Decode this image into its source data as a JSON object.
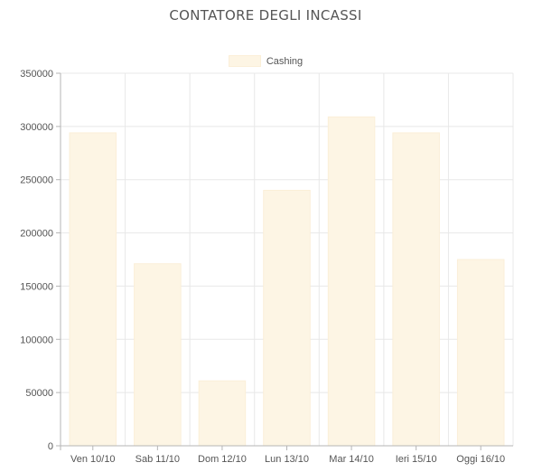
{
  "page": {
    "title": "CONTATORE DEGLI INCASSI"
  },
  "chart_data": {
    "type": "bar",
    "title": "CONTATORE DEGLI INCASSI",
    "categories": [
      "Ven 10/10",
      "Sab 11/10",
      "Dom 12/10",
      "Lun 13/10",
      "Mar 14/10",
      "Ieri 15/10",
      "Oggi 16/10"
    ],
    "series": [
      {
        "name": "Cashing",
        "values": [
          294000,
          171000,
          61000,
          240000,
          309000,
          294000,
          175000
        ]
      }
    ],
    "ylim": [
      0,
      350000
    ],
    "yticks": [
      0,
      50000,
      100000,
      150000,
      200000,
      250000,
      300000,
      350000
    ],
    "ytick_labels": [
      "0",
      "50000",
      "100000",
      "150000",
      "200000",
      "250000",
      "300000",
      "350000"
    ],
    "xlabel": "",
    "ylabel": "",
    "grid": true,
    "legend_position": "top",
    "colors": {
      "bar_fill": "#fdf5e4",
      "bar_stroke": "#fbefd8",
      "grid": "#e8e8e8",
      "axis": "#b5b5b5"
    }
  }
}
